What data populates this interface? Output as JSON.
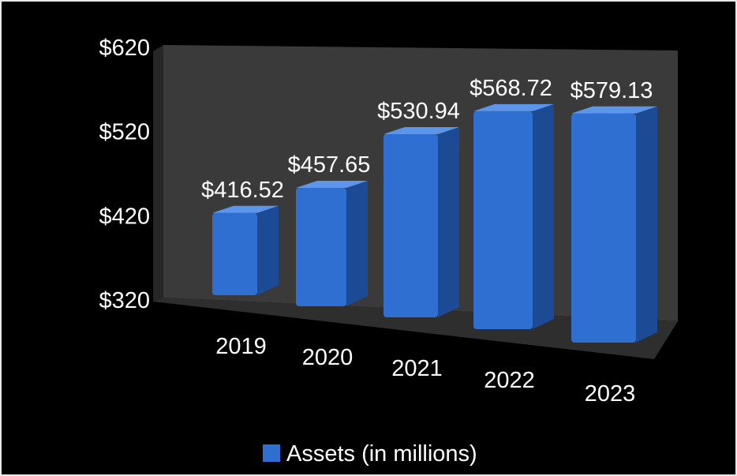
{
  "chart_data": {
    "type": "bar",
    "title": "",
    "xlabel": "",
    "ylabel": "",
    "categories": [
      "2019",
      "2020",
      "2021",
      "2022",
      "2023"
    ],
    "series": [
      {
        "name": "Assets (in millions)",
        "values": [
          416.52,
          457.65,
          530.94,
          568.72,
          579.13
        ],
        "data_labels": [
          "$416.52",
          "$457.65",
          "$530.94",
          "$568.72",
          "$579.13"
        ],
        "color": "#2e6fd1"
      }
    ],
    "y_ticks": [
      320,
      420,
      520,
      620
    ],
    "y_tick_labels": [
      "$320",
      "$420",
      "$520",
      "$620"
    ],
    "ylim": [
      320,
      620
    ],
    "legend_position": "bottom",
    "grid": false,
    "style": "3d-perspective"
  },
  "colors": {
    "background": "#000000",
    "bar_front": "#2e6fd1",
    "bar_top": "#5c95ea",
    "bar_side": "#1c4a94",
    "back_wall": "#3a3a3a",
    "side_wall": "#262626",
    "floor": "#2e2e2e",
    "text": "#ffffff"
  }
}
